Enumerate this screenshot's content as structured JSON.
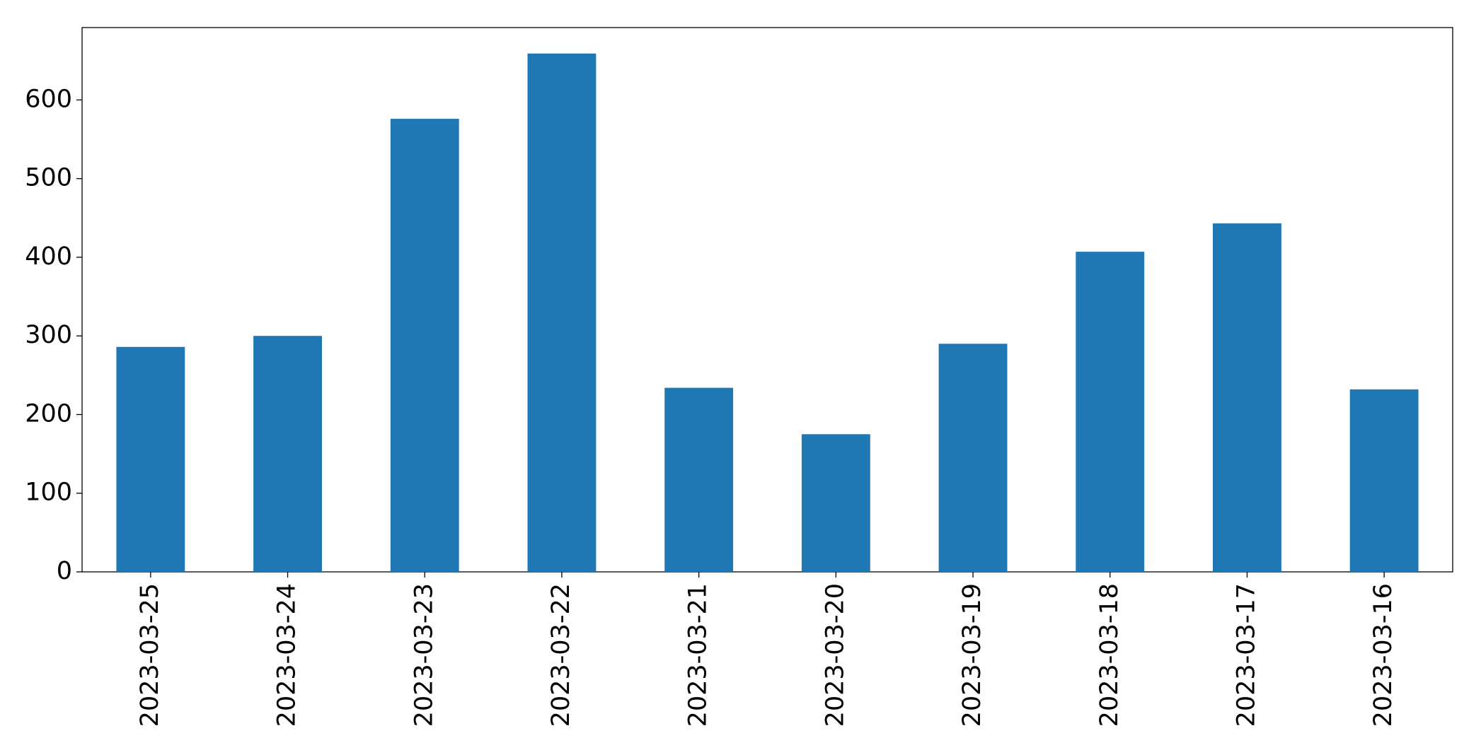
{
  "chart_data": {
    "type": "bar",
    "categories": [
      "2023-03-25",
      "2023-03-24",
      "2023-03-23",
      "2023-03-22",
      "2023-03-21",
      "2023-03-20",
      "2023-03-19",
      "2023-03-18",
      "2023-03-17",
      "2023-03-16"
    ],
    "values": [
      286,
      300,
      576,
      659,
      234,
      175,
      290,
      407,
      443,
      232
    ],
    "color": "#1f77b4",
    "ylim": [
      0,
      692
    ],
    "yticks": [
      0,
      100,
      200,
      300,
      400,
      500,
      600
    ],
    "grid": false
  }
}
